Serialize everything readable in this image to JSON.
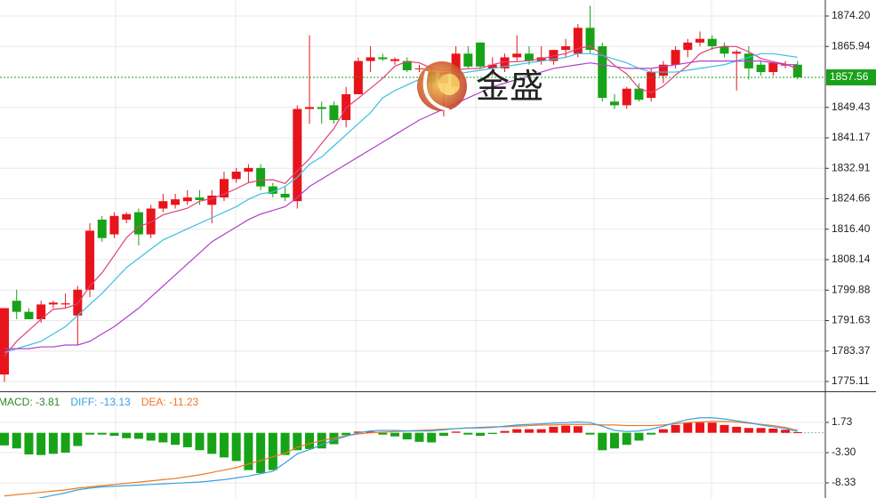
{
  "chart_data": [
    {
      "type": "candlestick",
      "watermark": "金盛",
      "up_color": "#e8141b",
      "down_color": "#17a317",
      "open": [
        1777,
        1797,
        1794,
        1792,
        1796,
        1796,
        1793,
        1800,
        1819,
        1815,
        1819,
        1821,
        1815,
        1822,
        1823,
        1824,
        1825,
        1823,
        1825,
        1830,
        1832,
        1833,
        1828,
        1826,
        1824,
        1849,
        1849.5,
        1850,
        1846,
        1853,
        1862,
        1863,
        1862,
        1862,
        1860,
        1859,
        1856,
        1855,
        1864,
        1867,
        1860,
        1860,
        1863,
        1864,
        1862,
        1862,
        1865,
        1864,
        1871,
        1866,
        1851,
        1850,
        1854.5,
        1852,
        1858,
        1861,
        1865,
        1867,
        1868,
        1866,
        1864,
        1864,
        1861,
        1859,
        1861,
        1861
      ],
      "high": [
        1795,
        1800,
        1795,
        1797,
        1797,
        1799,
        1801,
        1818,
        1820,
        1821,
        1821,
        1822,
        1823,
        1826,
        1826,
        1827,
        1827,
        1827,
        1832,
        1833,
        1834,
        1834,
        1829,
        1828,
        1850,
        1869,
        1851,
        1851,
        1855,
        1863,
        1866,
        1864,
        1863,
        1863,
        1861,
        1860,
        1858,
        1866,
        1866,
        1867,
        1863,
        1864,
        1869,
        1866,
        1866,
        1865,
        1868,
        1872,
        1877,
        1867,
        1853,
        1855,
        1856,
        1860,
        1862,
        1866,
        1868,
        1870,
        1869,
        1867,
        1865,
        1866,
        1862,
        1862,
        1862,
        1862
      ],
      "low": [
        1775,
        1792,
        1792,
        1791,
        1795,
        1795,
        1785,
        1798,
        1813,
        1814,
        1818,
        1812,
        1814,
        1821,
        1822,
        1823,
        1823,
        1818,
        1824,
        1829,
        1829,
        1827,
        1825,
        1824,
        1822,
        1845,
        1845,
        1845,
        1844,
        1853,
        1859,
        1862,
        1861,
        1859,
        1859,
        1854,
        1847,
        1853,
        1860,
        1860,
        1858,
        1859,
        1862,
        1861,
        1861,
        1861,
        1863,
        1863,
        1864,
        1851,
        1849,
        1849,
        1851,
        1851,
        1856,
        1860,
        1863,
        1866,
        1865,
        1863,
        1854,
        1857,
        1858,
        1858,
        1860,
        1857
      ],
      "close": [
        1795,
        1794,
        1792,
        1796,
        1796.5,
        1796.3,
        1800,
        1816,
        1814,
        1820,
        1820.5,
        1815,
        1822,
        1824,
        1824.5,
        1825,
        1824.3,
        1825.5,
        1830,
        1832,
        1833,
        1828,
        1826,
        1825,
        1849,
        1849.5,
        1849,
        1846,
        1853,
        1862,
        1863,
        1862.5,
        1862.5,
        1859.5,
        1860,
        1856,
        1859,
        1864,
        1860.5,
        1860.5,
        1861,
        1863,
        1864,
        1862,
        1863,
        1865,
        1866,
        1871,
        1865,
        1852,
        1850,
        1854.5,
        1851.5,
        1859,
        1861,
        1865,
        1867,
        1868,
        1866,
        1864,
        1864.5,
        1860,
        1859,
        1861.5,
        1861,
        1857.56
      ],
      "ma_lines": [
        {
          "color": "#e0407a",
          "values": [
            1782,
            1786,
            1789,
            1792,
            1794.7,
            1795.0,
            1796.2,
            1801.0,
            1804.6,
            1809.3,
            1814.1,
            1817.1,
            1818.3,
            1820.3,
            1821.2,
            1822.1,
            1824.0,
            1824.7,
            1825.9,
            1827.4,
            1829.0,
            1829.7,
            1829.8,
            1828.8,
            1832.2,
            1835.5,
            1839.7,
            1843.7,
            1849.3,
            1851.9,
            1854.6,
            1857.3,
            1860.6,
            1861.9,
            1861.5,
            1860.1,
            1859.4,
            1859.7,
            1859.9,
            1860.0,
            1861.0,
            1861.8,
            1861.8,
            1862.1,
            1862.6,
            1863.4,
            1864.0,
            1865.4,
            1866.0,
            1863.8,
            1860.8,
            1858.5,
            1854.6,
            1853.4,
            1855.2,
            1858.2,
            1860.7,
            1864.0,
            1865.4,
            1866.0,
            1865.9,
            1864.5,
            1862.7,
            1861.8,
            1861.2,
            1859.8
          ]
        },
        {
          "color": "#3cc0e0",
          "values": [
            1783,
            1784,
            1785,
            1786,
            1788,
            1790,
            1793,
            1796,
            1799,
            1802.5,
            1806,
            1808.5,
            1811,
            1813.5,
            1815,
            1816.5,
            1818,
            1819.5,
            1821,
            1822.5,
            1824.5,
            1826,
            1826.5,
            1828,
            1830.5,
            1834,
            1836,
            1839,
            1842,
            1845,
            1848,
            1852,
            1854,
            1855.5,
            1857,
            1857.5,
            1858,
            1858.5,
            1859,
            1859.5,
            1860,
            1860.5,
            1861,
            1861.5,
            1862,
            1862.5,
            1863,
            1864,
            1864,
            1863.5,
            1862.5,
            1861.5,
            1860,
            1859,
            1859,
            1859,
            1859.5,
            1860,
            1860.5,
            1861,
            1862,
            1863,
            1864,
            1864,
            1863.5,
            1863
          ]
        },
        {
          "color": "#b040c8",
          "values": [
            1784,
            1784,
            1784,
            1784.5,
            1784.5,
            1785,
            1785,
            1786,
            1788,
            1790,
            1792.5,
            1795,
            1798,
            1801,
            1804,
            1807,
            1810,
            1813,
            1815,
            1817,
            1819,
            1820.5,
            1821.5,
            1822.5,
            1825,
            1828,
            1830,
            1832,
            1834,
            1836,
            1838,
            1840,
            1842,
            1844,
            1846,
            1847.5,
            1849,
            1850.5,
            1852,
            1853.5,
            1855,
            1856,
            1857,
            1858,
            1859,
            1860,
            1860.5,
            1861,
            1861.5,
            1861,
            1860.5,
            1860,
            1860,
            1860,
            1860.5,
            1861,
            1861.5,
            1862,
            1862,
            1862,
            1862,
            1862,
            1862,
            1861.5,
            1861,
            1861
          ]
        }
      ],
      "last_price": 1857.56,
      "last_color": "#1aa01a",
      "ylim": [
        1772.46,
        1878.54
      ],
      "yticks": [
        {
          "value": 1874.2,
          "label": "1874.20"
        },
        1865.94,
        1849.43,
        1841.17,
        1832.91,
        1824.66,
        {
          "value": 1816.4,
          "label": "1816.40"
        },
        1808.14,
        1799.88,
        1791.63,
        1783.37,
        1775.11
      ],
      "grid": true
    },
    {
      "type": "macd",
      "legend": [
        {
          "label": "MACD: -3.81",
          "color": "#2a8a2a"
        },
        {
          "label": "DIFF: -13.13",
          "color": "#3aa0e0"
        },
        {
          "label": "DEA: -11.23",
          "color": "#f07820"
        }
      ],
      "diff": [
        -12,
        -11.6,
        -11.2,
        -10.8,
        -10.4,
        -10,
        -9.5,
        -9.2,
        -9.0,
        -8.9,
        -8.8,
        -8.7,
        -8.6,
        -8.5,
        -8.4,
        -8.3,
        -8.2,
        -8.0,
        -7.8,
        -7.5,
        -7.2,
        -6.8,
        -6.4,
        -5.0,
        -3.5,
        -2.8,
        -2.0,
        -1.2,
        -0.6,
        0,
        0.3,
        0.4,
        0.4,
        0.3,
        0.3,
        0.3,
        0.5,
        0.7,
        0.8,
        0.8,
        0.9,
        1.1,
        1.3,
        1.4,
        1.5,
        1.6,
        1.7,
        1.8,
        1.7,
        1.1,
        0.4,
        0.2,
        0.3,
        0.6,
        1.1,
        1.7,
        2.2,
        2.5,
        2.5,
        2.3,
        2.0,
        1.7,
        1.3,
        1.0,
        0.7,
        0.2
      ],
      "dea": [
        -10.5,
        -10.3,
        -10.1,
        -9.9,
        -9.7,
        -9.5,
        -9.2,
        -9.0,
        -8.8,
        -8.6,
        -8.4,
        -8.2,
        -8.0,
        -7.8,
        -7.6,
        -7.3,
        -7.0,
        -6.6,
        -6.2,
        -5.8,
        -5.2,
        -4.6,
        -4.0,
        -3.4,
        -2.4,
        -1.8,
        -1.3,
        -0.9,
        -0.5,
        -0.2,
        0,
        0.1,
        0.2,
        0.3,
        0.4,
        0.5,
        0.6,
        0.7,
        0.8,
        0.9,
        1.0,
        1.0,
        1.1,
        1.2,
        1.3,
        1.3,
        1.4,
        1.4,
        1.4,
        1.3,
        1.3,
        1.2,
        1.2,
        1.2,
        1.3,
        1.5,
        1.7,
        1.8,
        1.9,
        1.9,
        1.8,
        1.6,
        1.4,
        1.2,
        0.9,
        0.4
      ],
      "hist": [
        -2.1,
        -2.6,
        -3.6,
        -3.7,
        -3.5,
        -3.3,
        -2.2,
        -0.3,
        -0.3,
        -0.5,
        -0.9,
        -1.0,
        -1.3,
        -1.6,
        -2.0,
        -2.4,
        -2.9,
        -3.5,
        -4.1,
        -4.7,
        -6.2,
        -6.7,
        -6.2,
        -3.7,
        -2.9,
        -2.7,
        -2.6,
        -1.9,
        -0.4,
        0.2,
        0.2,
        -0.3,
        -0.6,
        -1.1,
        -1.5,
        -1.6,
        -0.5,
        0.2,
        -0.3,
        -0.5,
        -0.2,
        0.3,
        0.6,
        0.6,
        0.6,
        1.0,
        1.2,
        1.1,
        -0.3,
        -2.9,
        -2.6,
        -2.0,
        -1.3,
        -0.3,
        0.6,
        1.3,
        1.7,
        1.7,
        1.7,
        1.3,
        1.0,
        0.8,
        0.8,
        0.7,
        0.5,
        0.1
      ],
      "ylim": [
        -10.11,
        6.76
      ],
      "yticks": [
        1.73,
        {
          "value": -3.3,
          "label": "-3.30"
        },
        -8.33
      ]
    }
  ]
}
